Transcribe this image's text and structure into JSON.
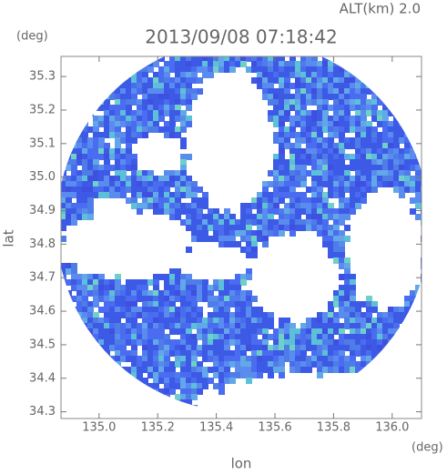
{
  "chart_data": {
    "type": "radar-map",
    "title": "2013/09/08 07:18:42",
    "annotation": "ALT(km) 2.0",
    "x_label": "lon",
    "y_label": "lat",
    "x_unit": "(deg)",
    "y_unit": "(deg)",
    "xlim": [
      134.87,
      136.1
    ],
    "ylim": [
      34.28,
      35.36
    ],
    "xticks": [
      {
        "value": 135.0,
        "label": "135.0"
      },
      135.2,
      135.4,
      135.6,
      135.8,
      {
        "value": 136.0,
        "label": "136.0"
      }
    ],
    "yticks": [
      34.3,
      34.4,
      34.5,
      34.6,
      34.7,
      34.8,
      34.9,
      {
        "value": 35.0,
        "label": "35.0"
      },
      35.1,
      35.2,
      35.3
    ]
  }
}
